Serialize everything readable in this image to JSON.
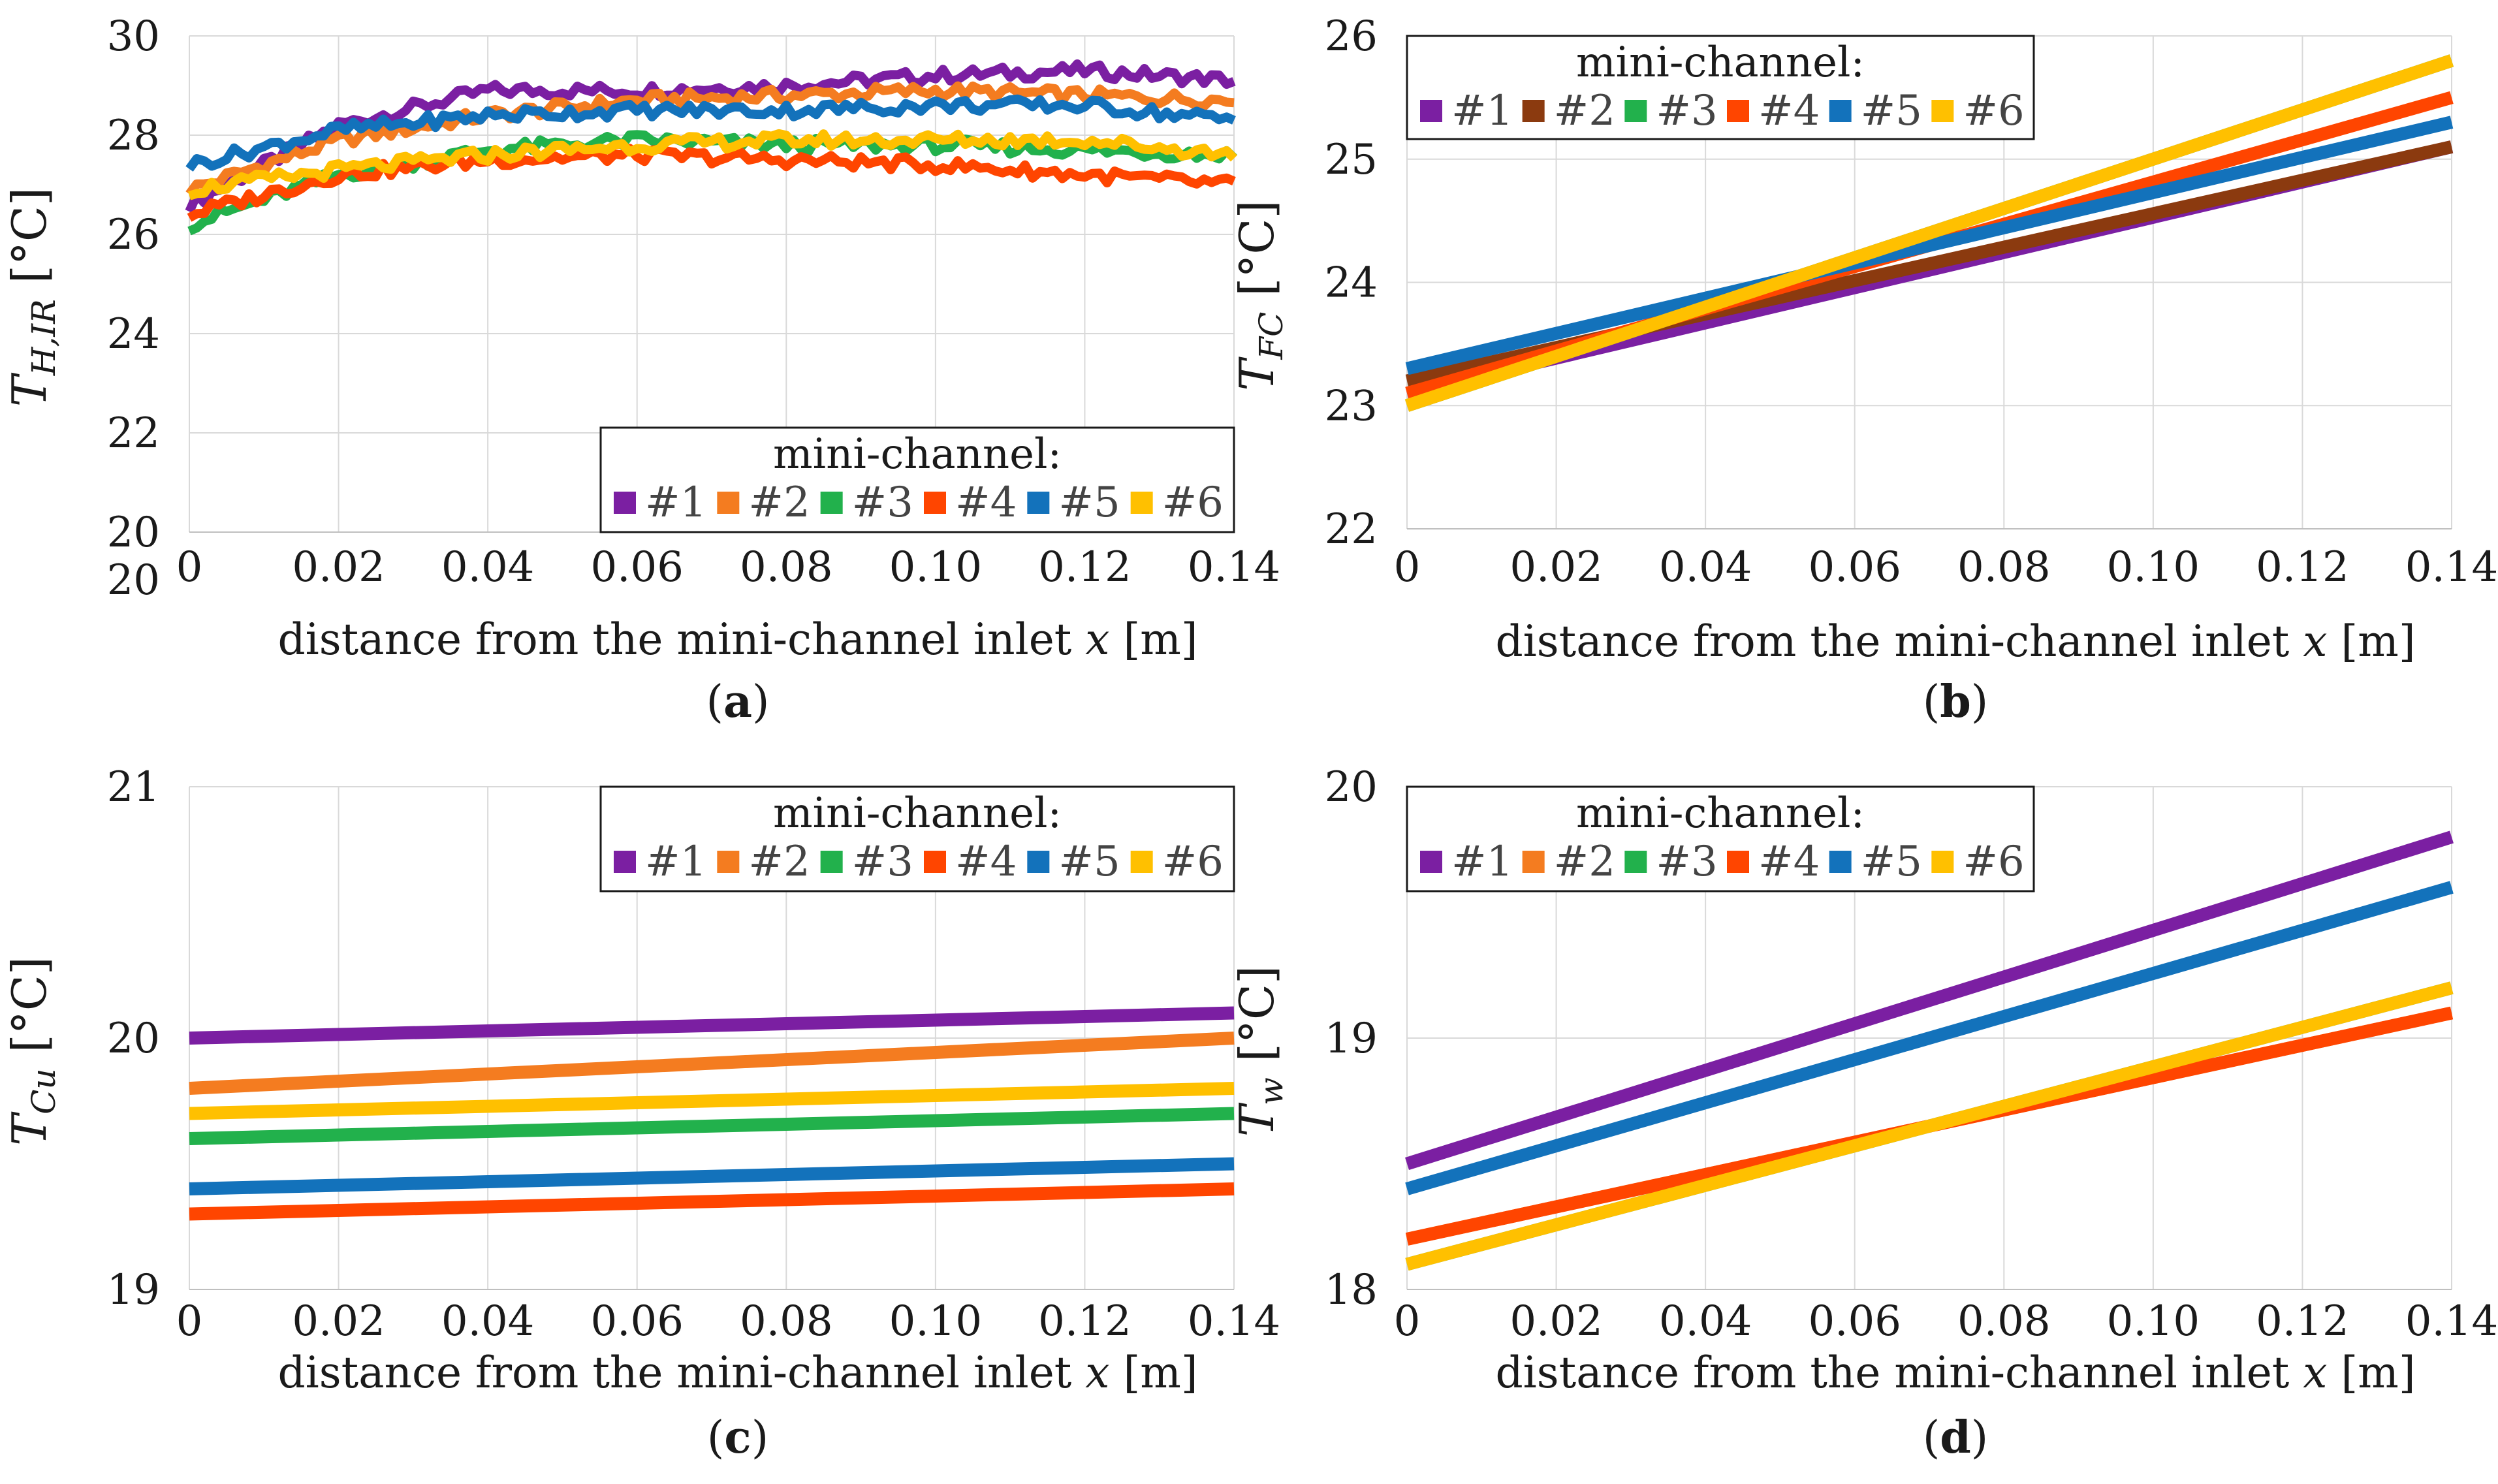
{
  "chart_data": [
    {
      "id": "a",
      "type": "line",
      "panel_letter": "a",
      "ylabel": {
        "main": "T",
        "sub": "H,IR",
        "unit": "[°C]"
      },
      "xlabel": "distance from the mini-channel inlet x [m]",
      "xlabel_parts": {
        "pre": "distance from the mini-channel inlet ",
        "var": "x",
        "post": " [m]"
      },
      "xlim": [
        0,
        0.14
      ],
      "ylim": [
        20,
        30
      ],
      "xticks": [
        "0",
        "0.02",
        "0.04",
        "0.06",
        "0.08",
        "0.10",
        "0.12",
        "0.14"
      ],
      "yticks": [
        "20",
        "22",
        "24",
        "26",
        "28",
        "30"
      ],
      "extra_label": "20",
      "legend": {
        "title": "mini-channel:",
        "placement": "bottom-right"
      },
      "series": [
        {
          "name": "#1",
          "color": "#7B1FA2",
          "noisy": true,
          "x": [
            0,
            0.02,
            0.04,
            0.06,
            0.08,
            0.1,
            0.12,
            0.14
          ],
          "values": [
            26.6,
            28.2,
            28.9,
            28.9,
            29.0,
            29.2,
            29.3,
            29.1
          ]
        },
        {
          "name": "#2",
          "color": "#F47C20",
          "noisy": true,
          "x": [
            0,
            0.02,
            0.04,
            0.06,
            0.08,
            0.1,
            0.12,
            0.14
          ],
          "values": [
            26.9,
            27.9,
            28.4,
            28.7,
            28.8,
            28.9,
            28.8,
            28.7
          ]
        },
        {
          "name": "#3",
          "color": "#22B14C",
          "noisy": true,
          "x": [
            0,
            0.02,
            0.04,
            0.06,
            0.08,
            0.1,
            0.12,
            0.14
          ],
          "values": [
            26.2,
            27.2,
            27.7,
            27.9,
            27.8,
            27.8,
            27.7,
            27.6
          ]
        },
        {
          "name": "#4",
          "color": "#FF4500",
          "noisy": true,
          "x": [
            0,
            0.02,
            0.04,
            0.06,
            0.08,
            0.1,
            0.12,
            0.14
          ],
          "values": [
            26.4,
            27.2,
            27.5,
            27.6,
            27.5,
            27.4,
            27.2,
            27.0
          ]
        },
        {
          "name": "#5",
          "color": "#1372BB",
          "noisy": true,
          "x": [
            0,
            0.02,
            0.04,
            0.06,
            0.08,
            0.1,
            0.12,
            0.14
          ],
          "values": [
            27.4,
            28.1,
            28.4,
            28.5,
            28.5,
            28.6,
            28.6,
            28.3
          ]
        },
        {
          "name": "#6",
          "color": "#FFC000",
          "noisy": true,
          "x": [
            0,
            0.02,
            0.04,
            0.06,
            0.08,
            0.1,
            0.12,
            0.14
          ],
          "values": [
            26.9,
            27.3,
            27.6,
            27.8,
            27.9,
            27.9,
            27.9,
            27.6
          ]
        }
      ]
    },
    {
      "id": "b",
      "type": "line",
      "panel_letter": "b",
      "ylabel": {
        "main": "T",
        "sub": "FC",
        "unit": "[°C]"
      },
      "xlabel": "distance from the mini-channel inlet x [m]",
      "xlabel_parts": {
        "pre": "distance from the mini-channel inlet ",
        "var": "x",
        "post": " [m]"
      },
      "xlim": [
        0,
        0.14
      ],
      "ylim": [
        22,
        26
      ],
      "xticks": [
        "0",
        "0.02",
        "0.04",
        "0.06",
        "0.08",
        "0.10",
        "0.12",
        "0.14"
      ],
      "yticks": [
        "22",
        "23",
        "24",
        "25",
        "26"
      ],
      "legend": {
        "title": "mini-channel:",
        "placement": "top-left"
      },
      "series": [
        {
          "name": "#1",
          "color": "#7B1FA2",
          "x": [
            0,
            0.14
          ],
          "values": [
            23.1,
            25.1
          ]
        },
        {
          "name": "#2",
          "color": "#8B3A0F",
          "x": [
            0,
            0.14
          ],
          "values": [
            23.2,
            25.1
          ]
        },
        {
          "name": "#3",
          "color": "#22B14C",
          "x": [
            0,
            0.14
          ],
          "values": [
            23.0,
            25.8
          ]
        },
        {
          "name": "#4",
          "color": "#FF4500",
          "x": [
            0,
            0.14
          ],
          "values": [
            23.1,
            25.5
          ]
        },
        {
          "name": "#5",
          "color": "#1372BB",
          "x": [
            0,
            0.14
          ],
          "values": [
            23.3,
            25.3
          ]
        },
        {
          "name": "#6",
          "color": "#FFC000",
          "x": [
            0,
            0.14
          ],
          "values": [
            23.0,
            25.8
          ]
        }
      ]
    },
    {
      "id": "c",
      "type": "line",
      "panel_letter": "c",
      "ylabel": {
        "main": "T",
        "sub": "Cu",
        "unit": "[°C]"
      },
      "xlabel": "distance from the mini-channel inlet x [m]",
      "xlabel_parts": {
        "pre": "distance from the mini-channel inlet ",
        "var": "x",
        "post": " [m]"
      },
      "xlim": [
        0,
        0.14
      ],
      "ylim": [
        19,
        21
      ],
      "xticks": [
        "0",
        "0.02",
        "0.04",
        "0.06",
        "0.08",
        "0.10",
        "0.12",
        "0.14"
      ],
      "yticks": [
        "19",
        "20",
        "21"
      ],
      "legend": {
        "title": "mini-channel:",
        "placement": "top-right"
      },
      "series": [
        {
          "name": "#1",
          "color": "#7B1FA2",
          "x": [
            0,
            0.14
          ],
          "values": [
            20.0,
            20.1
          ]
        },
        {
          "name": "#2",
          "color": "#F47C20",
          "x": [
            0,
            0.14
          ],
          "values": [
            19.8,
            20.0
          ]
        },
        {
          "name": "#3",
          "color": "#22B14C",
          "x": [
            0,
            0.14
          ],
          "values": [
            19.6,
            19.7
          ]
        },
        {
          "name": "#4",
          "color": "#FF4500",
          "x": [
            0,
            0.14
          ],
          "values": [
            19.3,
            19.4
          ]
        },
        {
          "name": "#5",
          "color": "#1372BB",
          "x": [
            0,
            0.14
          ],
          "values": [
            19.4,
            19.5
          ]
        },
        {
          "name": "#6",
          "color": "#FFC000",
          "x": [
            0,
            0.14
          ],
          "values": [
            19.7,
            19.8
          ]
        }
      ]
    },
    {
      "id": "d",
      "type": "line",
      "panel_letter": "d",
      "ylabel": {
        "main": "T",
        "sub": "w",
        "unit": "[°C]"
      },
      "xlabel": "distance from the mini-channel inlet x [m]",
      "xlabel_parts": {
        "pre": "distance from the mini-channel inlet ",
        "var": "x",
        "post": " [m]"
      },
      "xlim": [
        0,
        0.14
      ],
      "ylim": [
        18,
        20
      ],
      "xticks": [
        "0",
        "0.02",
        "0.04",
        "0.06",
        "0.08",
        "0.10",
        "0.12",
        "0.14"
      ],
      "yticks": [
        "18",
        "19",
        "20"
      ],
      "legend": {
        "title": "mini-channel:",
        "placement": "top-left"
      },
      "series": [
        {
          "name": "#1",
          "color": "#7B1FA2",
          "x": [
            0,
            0.14
          ],
          "values": [
            18.5,
            19.8
          ]
        },
        {
          "name": "#2",
          "color": "#F47C20",
          "x": [
            0,
            0.14
          ],
          "values": [
            18.2,
            19.1
          ]
        },
        {
          "name": "#3",
          "color": "#22B14C",
          "x": [
            0,
            0.14
          ],
          "values": [
            18.1,
            19.2
          ]
        },
        {
          "name": "#4",
          "color": "#FF4500",
          "x": [
            0,
            0.14
          ],
          "values": [
            18.2,
            19.1
          ]
        },
        {
          "name": "#5",
          "color": "#1372BB",
          "x": [
            0,
            0.14
          ],
          "values": [
            18.4,
            19.6
          ]
        },
        {
          "name": "#6",
          "color": "#FFC000",
          "x": [
            0,
            0.14
          ],
          "values": [
            18.1,
            19.2
          ]
        }
      ]
    }
  ]
}
